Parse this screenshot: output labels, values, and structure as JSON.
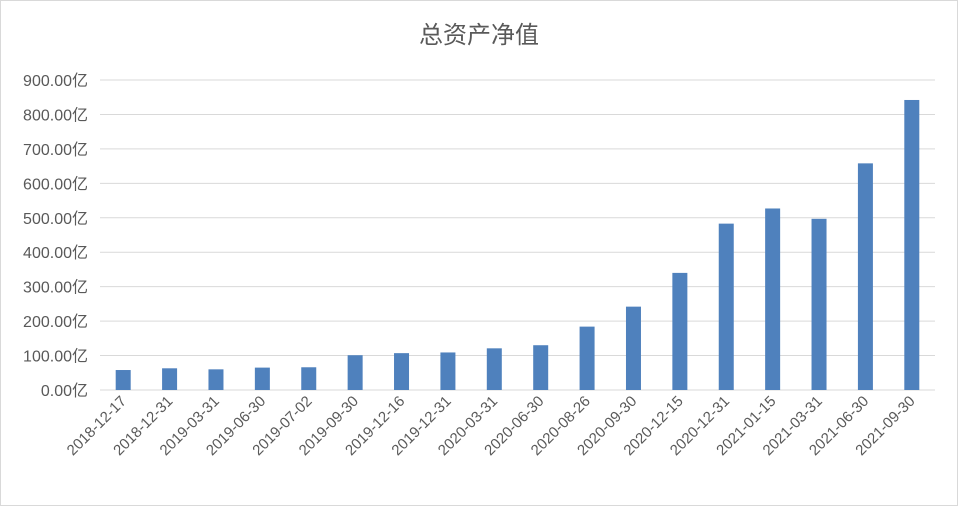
{
  "chart_data": {
    "type": "bar",
    "title": "总资产净值",
    "xlabel": "",
    "ylabel": "",
    "ylim": [
      0,
      900
    ],
    "y_tick_values": [
      0,
      100,
      200,
      300,
      400,
      500,
      600,
      700,
      800,
      900
    ],
    "y_tick_labels": [
      "0.00亿",
      "100.00亿",
      "200.00亿",
      "300.00亿",
      "400.00亿",
      "500.00亿",
      "600.00亿",
      "700.00亿",
      "800.00亿",
      "900.00亿"
    ],
    "grid": true,
    "legend": "none",
    "bar_color": "#4f81bd",
    "categories": [
      "2018-12-17",
      "2018-12-31",
      "2019-03-31",
      "2019-06-30",
      "2019-07-02",
      "2019-09-30",
      "2019-12-16",
      "2019-12-31",
      "2020-03-31",
      "2020-06-30",
      "2020-08-26",
      "2020-09-30",
      "2020-12-15",
      "2020-12-31",
      "2021-01-15",
      "2021-03-31",
      "2021-06-30",
      "2021-09-30"
    ],
    "values": [
      58,
      63,
      60,
      65,
      66,
      101,
      107,
      109,
      121,
      130,
      184,
      242,
      340,
      483,
      527,
      497,
      658,
      842
    ]
  }
}
